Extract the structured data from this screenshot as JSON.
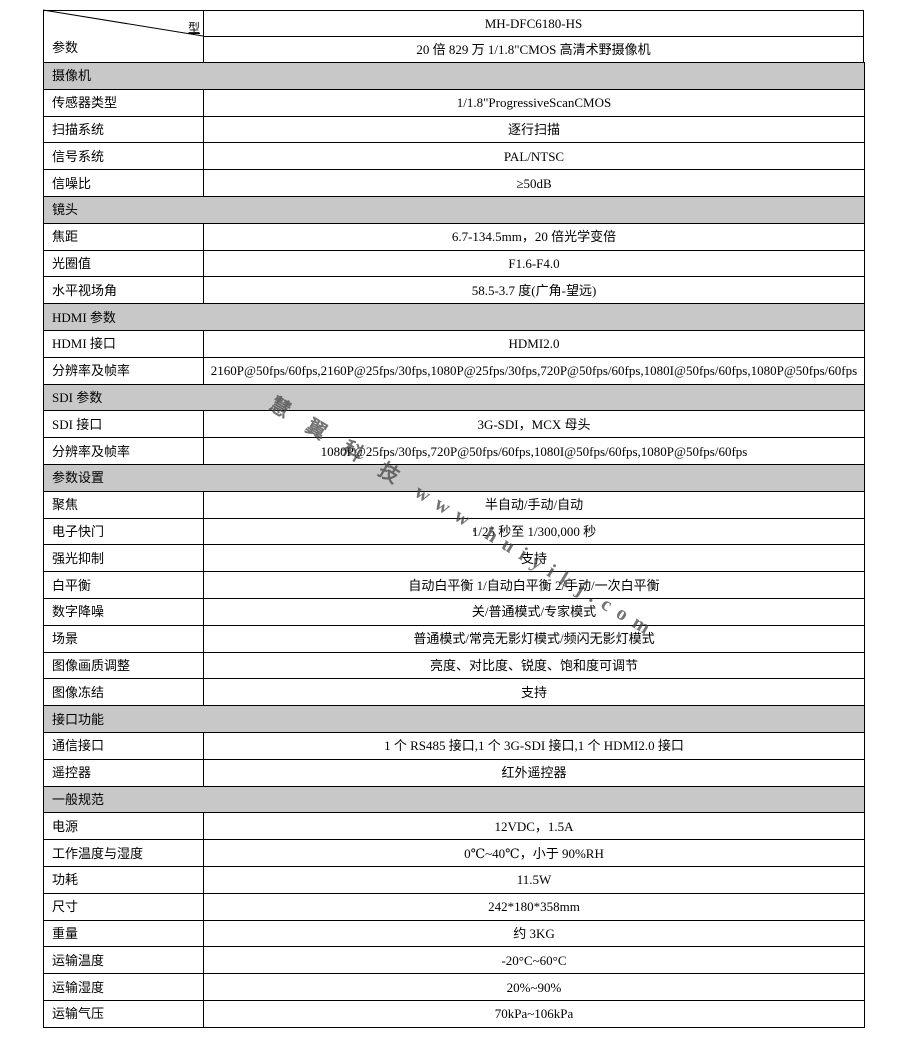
{
  "header": {
    "corner_top": "型",
    "corner_bottom": "参数",
    "model": "MH-DFC6180-HS",
    "description": "20 倍 829 万 1/1.8\"CMOS 高清术野摄像机"
  },
  "sections": [
    {
      "title": "摄像机",
      "rows": [
        {
          "label": "传感器类型",
          "value": "1/1.8\"ProgressiveScanCMOS"
        },
        {
          "label": "扫描系统",
          "value": "逐行扫描"
        },
        {
          "label": "信号系统",
          "value": "PAL/NTSC"
        },
        {
          "label": "信噪比",
          "value": "≥50dB"
        }
      ]
    },
    {
      "title": "镜头",
      "rows": [
        {
          "label": "焦距",
          "value": "6.7-134.5mm，20 倍光学变倍"
        },
        {
          "label": "光圈值",
          "value": "F1.6-F4.0"
        },
        {
          "label": "水平视场角",
          "value": "58.5-3.7 度(广角-望远)"
        }
      ]
    },
    {
      "title": "HDMI 参数",
      "rows": [
        {
          "label": "HDMI 接口",
          "value": "HDMI2.0"
        },
        {
          "label": "分辨率及帧率",
          "value": "2160P@50fps/60fps,2160P@25fps/30fps,1080P@25fps/30fps,720P@50fps/60fps,1080I@50fps/60fps,1080P@50fps/60fps"
        }
      ]
    },
    {
      "title": "SDI 参数",
      "rows": [
        {
          "label": "SDI 接口",
          "value": "3G-SDI，MCX 母头"
        },
        {
          "label": "分辨率及帧率",
          "value": "1080P@25fps/30fps,720P@50fps/60fps,1080I@50fps/60fps,1080P@50fps/60fps"
        }
      ]
    },
    {
      "title": "参数设置",
      "rows": [
        {
          "label": "聚焦",
          "value": "半自动/手动/自动"
        },
        {
          "label": "电子快门",
          "value": "1/25 秒至 1/300,000 秒"
        },
        {
          "label": "强光抑制",
          "value": "支持"
        },
        {
          "label": "白平衡",
          "value": "自动白平衡 1/自动白平衡 2/手动/一次白平衡"
        },
        {
          "label": "数字降噪",
          "value": "关/普通模式/专家模式"
        },
        {
          "label": "场景",
          "value": "普通模式/常亮无影灯模式/频闪无影灯模式"
        },
        {
          "label": "图像画质调整",
          "value": "亮度、对比度、锐度、饱和度可调节"
        },
        {
          "label": "图像冻结",
          "value": "支持"
        }
      ]
    },
    {
      "title": "接口功能",
      "rows": [
        {
          "label": "通信接口",
          "value": "1 个 RS485 接口,1 个 3G-SDI 接口,1 个 HDMI2.0 接口"
        },
        {
          "label": "遥控器",
          "value": "红外遥控器"
        }
      ]
    },
    {
      "title": "一般规范",
      "rows": [
        {
          "label": "电源",
          "value": "12VDC，1.5A"
        },
        {
          "label": "工作温度与湿度",
          "value": "0℃~40℃，小于 90%RH"
        },
        {
          "label": "功耗",
          "value": "11.5W"
        },
        {
          "label": "尺寸",
          "value": "242*180*358mm"
        },
        {
          "label": "重量",
          "value": "约 3KG"
        },
        {
          "label": "运输温度",
          "value": "-20°C~60°C"
        },
        {
          "label": "运输湿度",
          "value": "20%~90%"
        },
        {
          "label": "运输气压",
          "value": "70kPa~106kPa"
        }
      ]
    }
  ],
  "watermark": "慧 翼 科 技 www.huiyikj.com"
}
